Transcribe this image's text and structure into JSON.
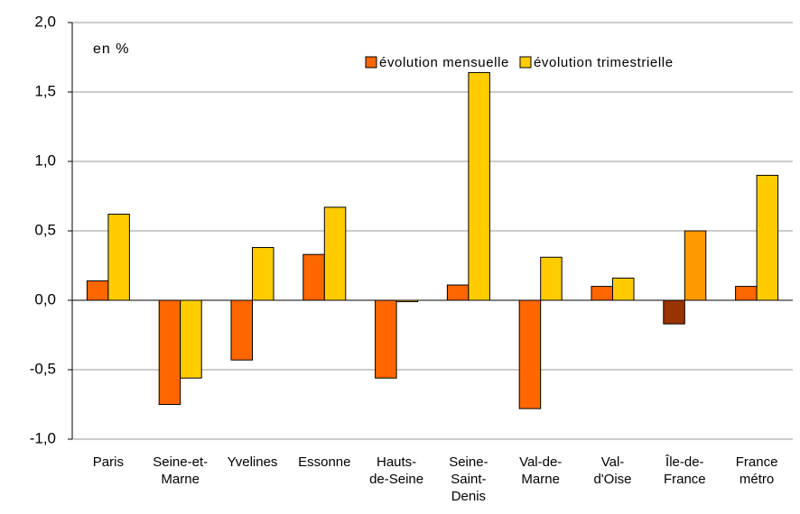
{
  "chart_data": {
    "type": "bar",
    "annotation": "en %",
    "categories": [
      "Paris",
      "Seine-et-\nMarne",
      "Yvelines",
      "Essonne",
      "Hauts-\nde-Seine",
      "Seine-\nSaint-\nDenis",
      "Val-de-\nMarne",
      "Val-\nd'Oise",
      "Île-de-\nFrance",
      "France\nmétro"
    ],
    "series": [
      {
        "name": "évolution mensuelle",
        "color": "#ff6600",
        "colors": [
          "#ff6600",
          "#ff6600",
          "#ff6600",
          "#ff6600",
          "#ff6600",
          "#ff6600",
          "#ff6600",
          "#ff6600",
          "#993300",
          "#ff6600"
        ],
        "values": [
          0.14,
          -0.75,
          -0.43,
          0.33,
          -0.56,
          0.11,
          -0.78,
          0.1,
          -0.17,
          0.1
        ]
      },
      {
        "name": "évolution trimestrielle",
        "color": "#ffcc00",
        "colors": [
          "#ffcc00",
          "#ffcc00",
          "#ffcc00",
          "#ffcc00",
          "#ffcc00",
          "#ffcc00",
          "#ffcc00",
          "#ffcc00",
          "#ff9900",
          "#ffcc00"
        ],
        "values": [
          0.62,
          -0.56,
          0.38,
          0.67,
          -0.01,
          1.64,
          0.31,
          0.16,
          0.5,
          0.9
        ]
      }
    ],
    "ylim": [
      -1.0,
      2.0
    ],
    "yticks": [
      {
        "value": -1.0,
        "label": "-1,0"
      },
      {
        "value": -0.5,
        "label": "-0,5"
      },
      {
        "value": 0,
        "label": "0,0"
      },
      {
        "value": 0.5,
        "label": "0,5"
      },
      {
        "value": 1.0,
        "label": "1,0"
      },
      {
        "value": 1.5,
        "label": "1,5"
      },
      {
        "value": 2.0,
        "label": "2,0"
      }
    ],
    "grid": true,
    "legend": "top-right"
  }
}
